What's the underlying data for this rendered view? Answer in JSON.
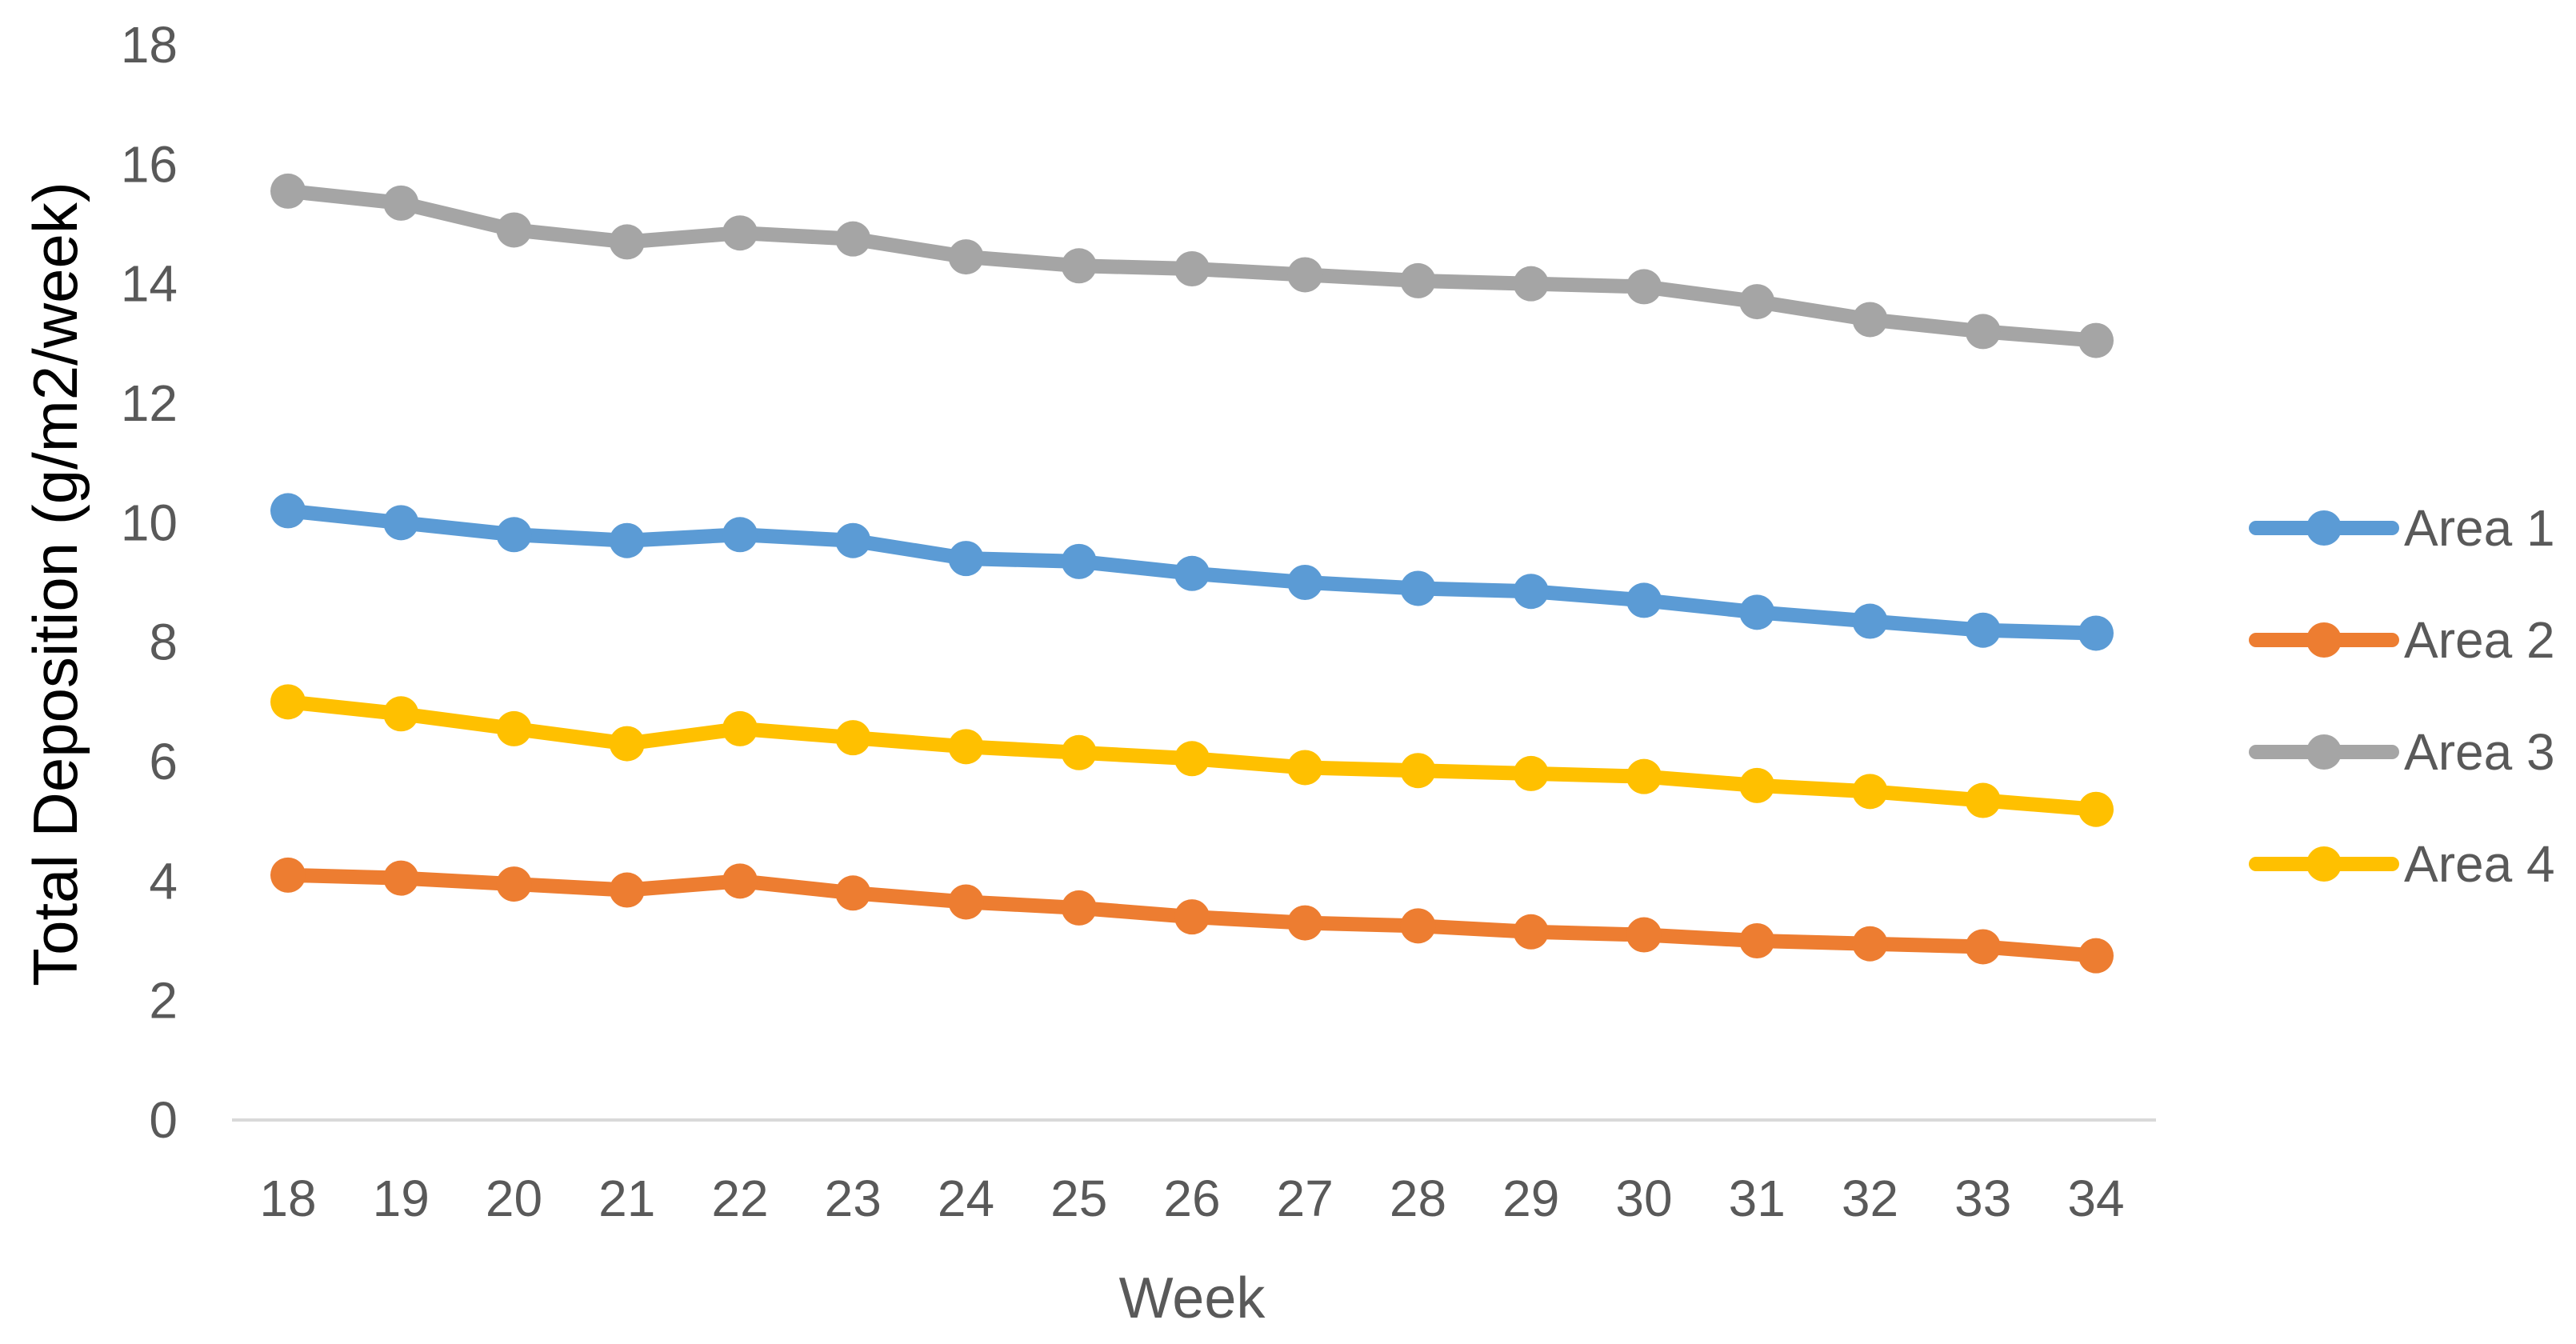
{
  "chart_data": {
    "type": "line",
    "title": "",
    "xlabel": "Week",
    "ylabel": "Total Deposition (g/m2/week)",
    "x": [
      18,
      19,
      20,
      21,
      22,
      23,
      24,
      25,
      26,
      27,
      28,
      29,
      30,
      31,
      32,
      33,
      34
    ],
    "ylim": [
      0,
      18
    ],
    "yticks": [
      0,
      2,
      4,
      6,
      8,
      10,
      12,
      14,
      16,
      18
    ],
    "grid": false,
    "legend_position": "right",
    "series": [
      {
        "name": "Area 1",
        "color": "#5B9BD5",
        "values": [
          10.2,
          10.0,
          9.8,
          9.7,
          9.8,
          9.7,
          9.4,
          9.35,
          9.15,
          9.0,
          8.9,
          8.85,
          8.7,
          8.5,
          8.35,
          8.2,
          8.15
        ]
      },
      {
        "name": "Area 2",
        "color": "#ED7D31",
        "values": [
          4.1,
          4.05,
          3.95,
          3.85,
          4.0,
          3.8,
          3.65,
          3.55,
          3.4,
          3.3,
          3.25,
          3.15,
          3.1,
          3.0,
          2.95,
          2.9,
          2.75
        ]
      },
      {
        "name": "Area 3",
        "color": "#A5A5A5",
        "values": [
          15.55,
          15.35,
          14.9,
          14.7,
          14.85,
          14.75,
          14.45,
          14.3,
          14.25,
          14.15,
          14.05,
          14.0,
          13.95,
          13.7,
          13.4,
          13.2,
          13.05
        ]
      },
      {
        "name": "Area 4",
        "color": "#FFC000",
        "values": [
          7.0,
          6.8,
          6.55,
          6.3,
          6.55,
          6.4,
          6.25,
          6.15,
          6.05,
          5.9,
          5.85,
          5.8,
          5.75,
          5.6,
          5.5,
          5.35,
          5.2
        ]
      }
    ]
  }
}
